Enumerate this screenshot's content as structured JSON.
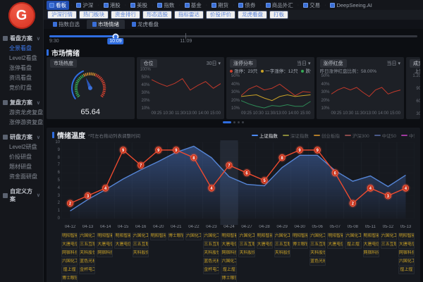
{
  "brand": {
    "logo_letter": "G"
  },
  "topbar": {
    "menu": [
      {
        "label": "看板",
        "active": true
      },
      {
        "label": "沪深"
      },
      {
        "label": "港股"
      },
      {
        "label": "美股"
      },
      {
        "label": "指数"
      },
      {
        "label": "基金"
      },
      {
        "label": "期货"
      },
      {
        "label": "债券"
      },
      {
        "label": "商品外汇"
      },
      {
        "label": "交易"
      },
      {
        "label": "DeepSeeing.AI"
      }
    ],
    "subnav": [
      "沪深行情",
      "热门板块",
      "资金排行",
      "形态选股",
      "指标雷达",
      "价投评价",
      "龙虎看盘",
      "打板"
    ],
    "tabs": [
      {
        "label": "指数自选",
        "active": false
      },
      {
        "label": "市场情绪",
        "active": true
      },
      {
        "label": "龙虎看盘",
        "active": false
      }
    ]
  },
  "sidebar": {
    "sections": [
      {
        "title": "看盘方案",
        "items": [
          {
            "label": "全景看盘",
            "active": true
          },
          {
            "label": "Level2看盘"
          },
          {
            "label": "涨停看盘"
          },
          {
            "label": "资讯看盘"
          },
          {
            "label": "竞价盯盘"
          }
        ]
      },
      {
        "title": "复盘方案",
        "items": [
          {
            "label": "游资龙虎复盘"
          },
          {
            "label": "涨停游资复盘"
          }
        ]
      },
      {
        "title": "研盘方案",
        "items": [
          {
            "label": "Level2研盘"
          },
          {
            "label": "价投研盘"
          },
          {
            "label": "题材研盘"
          },
          {
            "label": "资金面研盘"
          }
        ]
      },
      {
        "title": "自定义方案",
        "items": []
      }
    ]
  },
  "time_slider": {
    "start_label": "9:30",
    "current_label": "10:09",
    "tick_label": "11:09",
    "handle_pos_pct": 18,
    "tick_pos_pct": 37
  },
  "sentiment": {
    "title": "市场情绪",
    "gauge": {
      "tag": "市场热度",
      "value": "65.64"
    },
    "position_panel": {
      "tag": "仓位",
      "range_label": "30日 ▾"
    },
    "limit_panel": {
      "tag": "涨停分布",
      "range_label": "当日 ▾"
    },
    "red_panel": {
      "tag": "涨停红盘",
      "range_label": "当日 ▾",
      "subtitle": "昨日涨停红盘比例：58.00%"
    },
    "partial_panel": {
      "tag": "成交量",
      "legend_label": "上证",
      "ylabels": [
        "1.20",
        "90",
        "60",
        "30"
      ]
    }
  },
  "temperature": {
    "title": "情绪温度",
    "note": "*可左右拖动列表调整时间",
    "legend": [
      {
        "label": "上证指数",
        "color": "#4d8bf5",
        "active": true
      },
      {
        "label": "深证指数",
        "color": "#8a8a3a",
        "active": false
      },
      {
        "label": "创业板指",
        "color": "#b07c2a",
        "active": false
      },
      {
        "label": "沪深300",
        "color": "#8a4a4a",
        "active": false
      },
      {
        "label": "中证50",
        "color": "#4a5a8a",
        "active": false
      },
      {
        "label": "中证500",
        "color": "#a03aa0",
        "active": false
      }
    ]
  },
  "chart_data": [
    {
      "id": "market-heat-gauge",
      "type": "gauge",
      "title": "市场热度",
      "value": 65.64,
      "fraction": 0.41,
      "colors": {
        "arc": "#2f6de0",
        "low": "#35a854",
        "mid": "#d7902f",
        "high": "#d2402e",
        "needle": "#2b57b8"
      }
    },
    {
      "id": "position",
      "type": "line",
      "title": "仓位",
      "x": [
        "09:25",
        "10:30",
        "11:30/13:00",
        "14:00",
        "15:00"
      ],
      "ylabels": [
        "100%",
        "50%",
        "40%",
        "30%",
        "20%",
        "10%"
      ],
      "ylim": [
        10,
        50
      ],
      "series": [
        {
          "name": "仓位",
          "color": "#c0392b",
          "values": [
            40,
            36,
            33,
            36,
            41,
            29,
            34,
            38,
            31,
            36
          ]
        }
      ]
    },
    {
      "id": "limit-dist",
      "type": "line",
      "title": "涨停分布",
      "x": [
        "09:25",
        "10:30",
        "11:30/13:00",
        "14:00",
        "15:00"
      ],
      "ylabels": [
        "50%",
        "40%",
        "30%",
        "20%",
        "10%"
      ],
      "ylim": [
        10,
        50
      ],
      "legend": [
        {
          "label": "涨停：23只",
          "color": "#d2402e"
        },
        {
          "label": "一字涨停：12只",
          "color": "#c9a227"
        },
        {
          "label": "跌停：2只",
          "color": "#35a854"
        }
      ],
      "series": [
        {
          "name": "涨停",
          "color": "#c0392b",
          "values": [
            26,
            34,
            38,
            33,
            35,
            40,
            33,
            26,
            31,
            30
          ]
        },
        {
          "name": "一字涨停",
          "color": "#c9a227",
          "values": [
            25,
            26,
            27,
            23,
            20,
            25,
            27,
            25,
            26,
            27
          ]
        },
        {
          "name": "跌停",
          "color": "#2e8b57",
          "values": [
            20,
            16,
            13,
            11,
            14,
            13,
            15,
            13,
            13,
            19
          ]
        }
      ]
    },
    {
      "id": "limit-red",
      "type": "line",
      "title": "涨停红盘",
      "subtitle": "昨日涨停红盘比例：58.00%",
      "x": [
        "09:25",
        "10:30",
        "11:30/13:00",
        "14:00",
        "15:00"
      ],
      "ylabels": [
        "50%",
        "40%",
        "30%",
        "20%",
        "10%"
      ],
      "ylim": [
        10,
        50
      ],
      "series": [
        {
          "name": "涨停红盘",
          "color": "#c0392b",
          "values": [
            28,
            33,
            36,
            33,
            36,
            30,
            25,
            33,
            36,
            28,
            31,
            33
          ]
        }
      ]
    },
    {
      "id": "sentiment-temperature",
      "type": "line",
      "title": "情绪温度",
      "ylim": [
        0,
        10
      ],
      "highlight_index": 9,
      "categories": [
        "04-12",
        "04-13",
        "04-14",
        "04-15",
        "04-16",
        "04-20",
        "04-21",
        "04-22",
        "04-23",
        "04-24",
        "04-27",
        "04-28",
        "04-29",
        "04-30",
        "05-06",
        "05-07",
        "05-08",
        "05-11",
        "05-12",
        "05-13"
      ],
      "series": [
        {
          "name": "情绪温度",
          "color": "#f04b2f",
          "style": "markers",
          "values": [
            2,
            3,
            4,
            9,
            7,
            9,
            9,
            8,
            4,
            7,
            6,
            5,
            8,
            9,
            9,
            6,
            2,
            4,
            3,
            4
          ]
        },
        {
          "name": "上证指数",
          "color": "#5585d6",
          "style": "area",
          "values": [
            1,
            2.5,
            3.8,
            5.2,
            6.4,
            7.5,
            8.7,
            9.5,
            8,
            5.5,
            4.5,
            4.3,
            6.7,
            8.3,
            8.3,
            6.3,
            4.9,
            5.6,
            4.2,
            5.7
          ]
        }
      ],
      "stocks": [
        [
          "明阳智能",
          "大唐电信",
          "网宿科技",
          "六国化工",
          "煌上煌",
          "博士眼镜"
        ],
        [
          "六国化工",
          "三五互联",
          "天科股份",
          "蓝色光标",
          "金杯电工"
        ],
        [
          "明阳智能",
          "大唐电信",
          "网宿科技"
        ],
        [
          "明阳智能",
          "大唐电信"
        ],
        [
          "六国化工",
          "三五互联",
          "天科股份"
        ],
        [
          "明阳智能"
        ],
        [
          "博士眼镜"
        ],
        [
          "六国化工"
        ],
        [
          "六国化工",
          "三五互联",
          "天科股份",
          "蓝色光标",
          "金杯电工"
        ],
        [
          "明阳智能",
          "大唐电信",
          "网宿科技",
          "六国化工",
          "煌上煌",
          "博士眼镜"
        ],
        [
          "六国化工",
          "三五互联",
          "天科股份"
        ],
        [
          "明阳智能",
          "大唐电信"
        ],
        [
          "六国化工",
          "三五互联",
          "天科股份"
        ],
        [
          "明阳智能",
          "博士眼镜"
        ],
        [
          "六国化工",
          "三五互联",
          "天科股份",
          "蓝色光标"
        ],
        [
          "明阳智能",
          "大唐电信"
        ],
        [
          "六国化工",
          "煌上煌"
        ],
        [
          "明阳智能",
          "大唐电信",
          "网宿科技"
        ],
        [
          "六国化工",
          "三五互联"
        ],
        [
          "明阳智能",
          "大唐电信",
          "网宿科技",
          "六国化工",
          "煌上煌"
        ]
      ]
    }
  ]
}
